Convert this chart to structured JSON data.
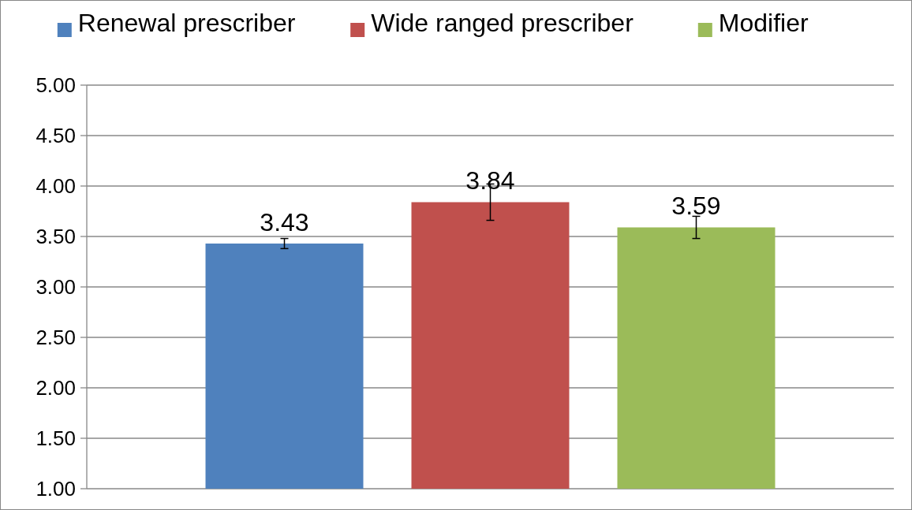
{
  "chart_data": {
    "type": "bar",
    "categories": [
      null
    ],
    "series": [
      {
        "name": "Renewal prescriber",
        "color": "#4f81bd",
        "values": [
          3.43
        ],
        "errors": [
          0.05
        ]
      },
      {
        "name": "Wide ranged prescriber",
        "color": "#c0504d",
        "values": [
          3.84
        ],
        "errors": [
          0.18
        ]
      },
      {
        "name": "Modifier",
        "color": "#9bbb59",
        "values": [
          3.59
        ],
        "errors": [
          0.11
        ]
      }
    ],
    "ylim": [
      1,
      5
    ],
    "yticks": [
      {
        "value": 1,
        "label": "1.00"
      },
      {
        "value": 1.5,
        "label": "1.50"
      },
      {
        "value": 2,
        "label": "2.00"
      },
      {
        "value": 2.5,
        "label": "2.50"
      },
      {
        "value": 3,
        "label": "3.00"
      },
      {
        "value": 3.5,
        "label": "3.50"
      },
      {
        "value": 4,
        "label": "4.00"
      },
      {
        "value": 4.5,
        "label": "4.50"
      },
      {
        "value": 5,
        "label": "5.00"
      }
    ],
    "grid": "y",
    "legend": "top",
    "data_labels": true
  }
}
